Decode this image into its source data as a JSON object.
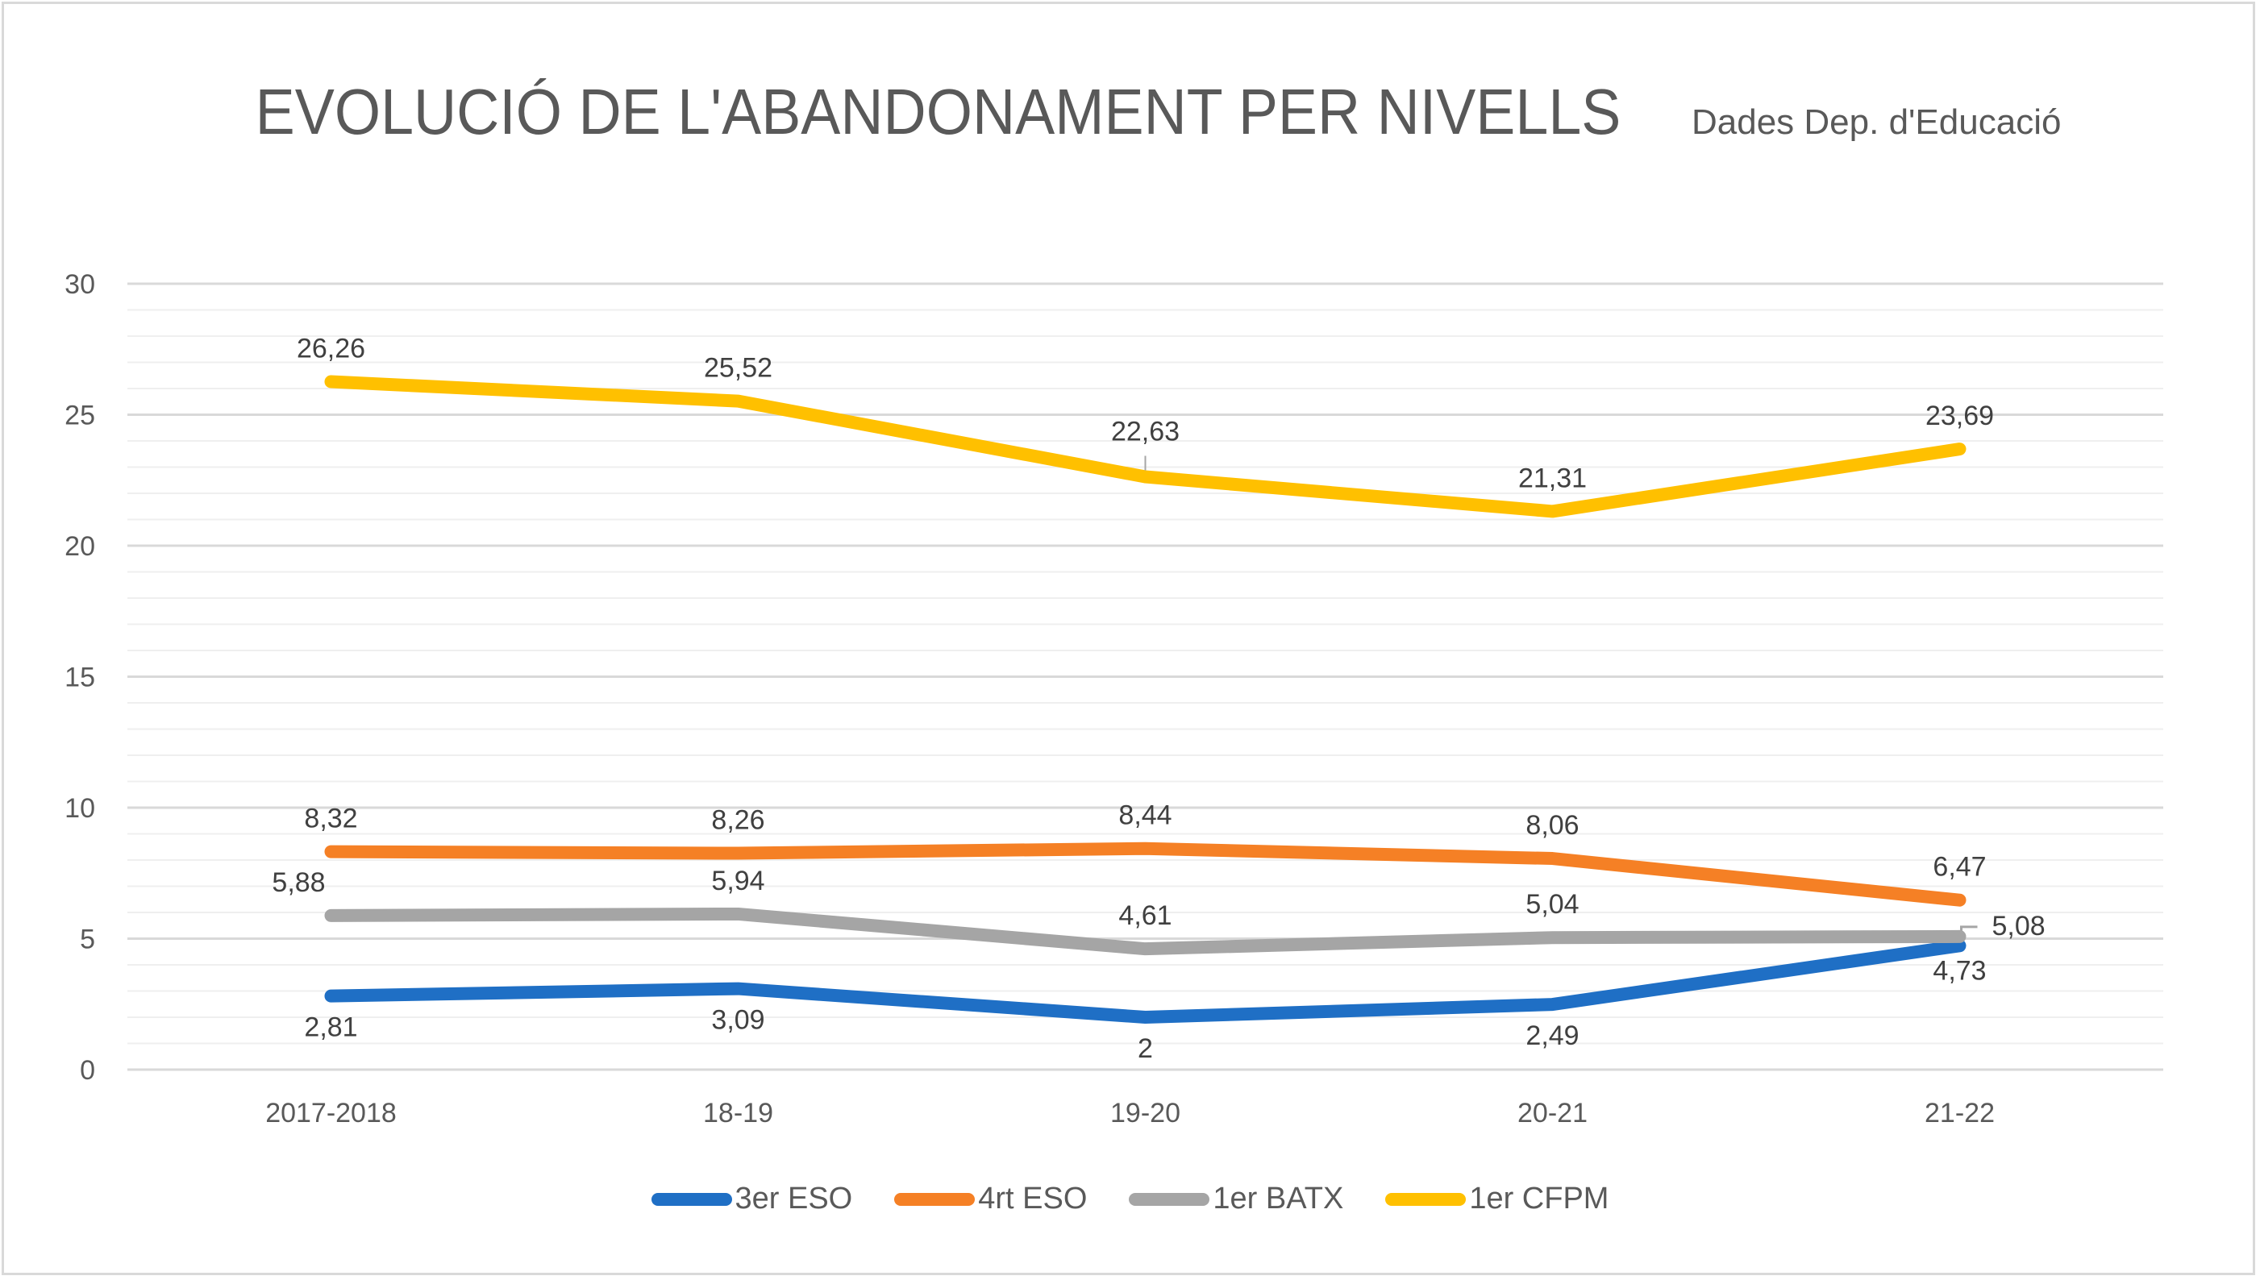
{
  "chart_data": {
    "type": "line",
    "title": "EVOLUCIÓ DE L'ABANDONAMENT PER NIVELLS",
    "subtitle": "Dades Dep. d'Educació",
    "xlabel": "",
    "ylabel": "",
    "categories": [
      "2017-2018",
      "18-19",
      "19-20",
      "20-21",
      "21-22"
    ],
    "ylim": [
      0,
      30
    ],
    "yticks": [
      0,
      5,
      10,
      15,
      20,
      25,
      30
    ],
    "ytick_labels": [
      "0",
      "5",
      "10",
      "15",
      "20",
      "25",
      "30"
    ],
    "grid": {
      "major": true,
      "minor": true,
      "minor_step": 1
    },
    "legend_position": "bottom",
    "series": [
      {
        "name": "3er ESO",
        "color": "#1f6fc5",
        "values": [
          2.81,
          3.09,
          2,
          2.49,
          4.73
        ],
        "labels": [
          "2,81",
          "3,09",
          "2",
          "2,49",
          "4,73"
        ],
        "label_position": "below"
      },
      {
        "name": "4rt ESO",
        "color": "#f58025",
        "values": [
          8.32,
          8.26,
          8.44,
          8.06,
          6.47
        ],
        "labels": [
          "8,32",
          "8,26",
          "8,44",
          "8,06",
          "6,47"
        ],
        "label_position": "above"
      },
      {
        "name": "1er BATX",
        "color": "#a5a5a5",
        "values": [
          5.88,
          5.94,
          4.61,
          5.04,
          5.08
        ],
        "labels": [
          "5,88",
          "5,94",
          "4,61",
          "5,04",
          "5,08"
        ],
        "label_position": "above"
      },
      {
        "name": "1er CFPM",
        "color": "#ffc000",
        "values": [
          26.26,
          25.52,
          22.63,
          21.31,
          23.69
        ],
        "labels": [
          "26,26",
          "25,52",
          "22,63",
          "21,31",
          "23,69"
        ],
        "label_position": "above"
      }
    ]
  }
}
